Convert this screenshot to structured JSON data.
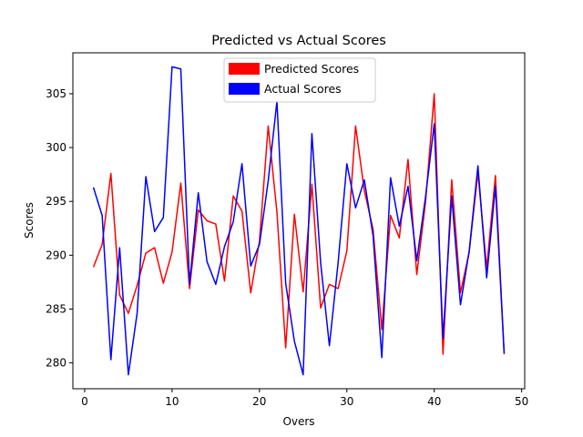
{
  "chart_data": {
    "type": "line",
    "title": "Predicted vs Actual Scores",
    "xlabel": "Overs",
    "ylabel": "Scores",
    "xlim": [
      -1.35,
      50.35
    ],
    "ylim": [
      277.6,
      308.8
    ],
    "xticks": [
      0,
      10,
      20,
      30,
      40,
      50
    ],
    "yticks": [
      280,
      285,
      290,
      295,
      300,
      305
    ],
    "grid": false,
    "legend_position": "upper-center",
    "x": [
      1,
      2,
      3,
      4,
      5,
      6,
      7,
      8,
      9,
      10,
      11,
      12,
      13,
      14,
      15,
      16,
      17,
      18,
      19,
      20,
      21,
      22,
      23,
      24,
      25,
      26,
      27,
      28,
      29,
      30,
      31,
      32,
      33,
      34,
      35,
      36,
      37,
      38,
      39,
      40,
      41,
      42,
      43,
      44,
      45,
      46,
      47,
      48
    ],
    "series": [
      {
        "name": "Predicted Scores",
        "color": "#ff0000",
        "values": [
          288.9,
          291.0,
          297.6,
          286.3,
          284.6,
          287.2,
          290.2,
          290.7,
          287.4,
          290.3,
          296.7,
          286.9,
          294.2,
          293.2,
          292.9,
          287.6,
          295.5,
          294.1,
          286.5,
          291.3,
          302.0,
          294.0,
          281.4,
          293.8,
          286.6,
          296.6,
          285.1,
          287.3,
          286.9,
          290.4,
          302.0,
          296.0,
          292.4,
          283.1,
          293.7,
          291.6,
          298.9,
          288.2,
          294.9,
          305.0,
          280.8,
          297.0,
          286.5,
          290.3,
          297.7,
          288.8,
          297.4,
          280.8
        ]
      },
      {
        "name": "Actual Scores",
        "color": "#0000ff",
        "values": [
          296.3,
          293.7,
          280.3,
          290.7,
          278.9,
          284.6,
          297.3,
          292.2,
          293.5,
          307.5,
          307.3,
          287.3,
          295.8,
          289.4,
          287.3,
          290.8,
          293.1,
          298.5,
          289.0,
          291.0,
          296.9,
          304.3,
          287.4,
          282.0,
          278.9,
          301.3,
          289.3,
          281.6,
          289.3,
          298.5,
          294.4,
          297.0,
          291.8,
          280.5,
          297.2,
          292.7,
          296.4,
          289.5,
          295.4,
          302.2,
          282.3,
          295.5,
          285.4,
          290.4,
          298.3,
          287.9,
          296.4,
          280.9
        ]
      }
    ]
  }
}
